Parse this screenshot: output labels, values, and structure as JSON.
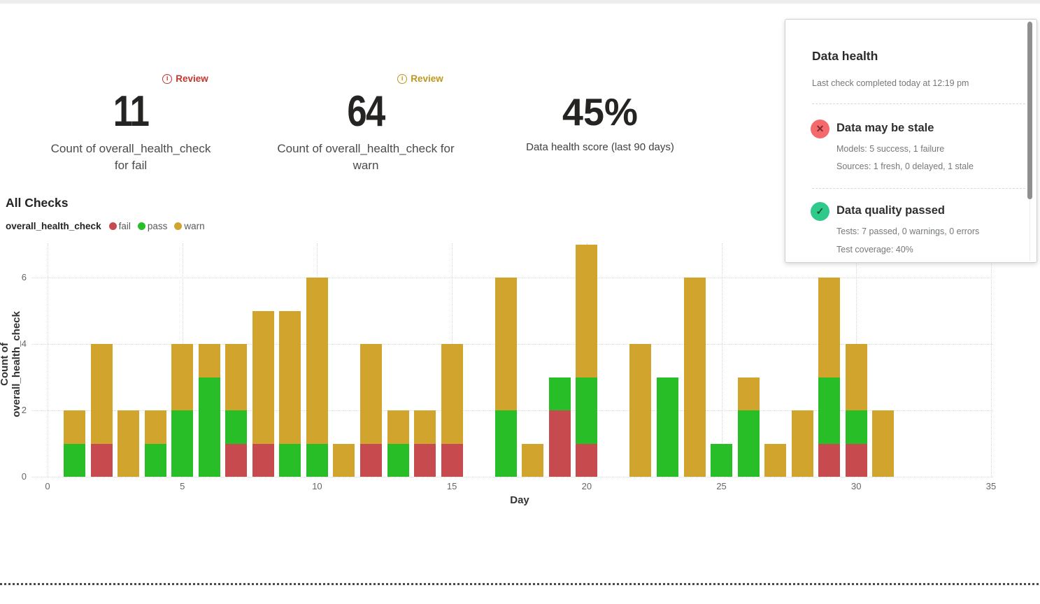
{
  "cards": [
    {
      "badge_label": "Review",
      "badge_icon_glyph": "i",
      "badge_color": "#C5352F",
      "value": "11",
      "label_line1": "Count of overall_health_check",
      "label_line2": "for fail"
    },
    {
      "badge_label": "Review",
      "badge_icon_glyph": "i",
      "badge_color": "#BD981F",
      "value": "64",
      "label_line1": "Count of overall_health_check for",
      "label_line2": "warn"
    },
    {
      "value": "45%",
      "label_line1": "Data health score (last 90 days)"
    }
  ],
  "all_checks": {
    "title": "All Checks",
    "legend_title": "overall_health_check",
    "legend": [
      {
        "label": "fail",
        "color": "#C74A4E"
      },
      {
        "label": "pass",
        "color": "#28BE28"
      },
      {
        "label": "warn",
        "color": "#D1A42D"
      }
    ]
  },
  "chart_data": {
    "type": "bar",
    "stacked": true,
    "title": "All Checks",
    "xlabel": "Day",
    "ylabel": "Count of overall_health_check",
    "xlim": [
      0,
      35
    ],
    "ylim": [
      0,
      7.1
    ],
    "xticks": [
      0,
      5,
      10,
      15,
      20,
      25,
      30,
      35
    ],
    "yticks": [
      0,
      2,
      4,
      6
    ],
    "grid": "dotted",
    "legend_position": "top-left",
    "categories": [
      1,
      2,
      3,
      4,
      5,
      6,
      7,
      8,
      9,
      10,
      11,
      12,
      13,
      14,
      15,
      16,
      17,
      18,
      19,
      20,
      21,
      22,
      23,
      24,
      25,
      26,
      27,
      28,
      29,
      30,
      31
    ],
    "series": [
      {
        "name": "fail",
        "color": "#C74A4E",
        "values": [
          0,
          1,
          0,
          0,
          0,
          0,
          1,
          1,
          0,
          0,
          0,
          1,
          0,
          1,
          1,
          0,
          0,
          0,
          2,
          1,
          0,
          0,
          0,
          0,
          0,
          0,
          0,
          0,
          1,
          1,
          0
        ]
      },
      {
        "name": "pass",
        "color": "#28BE28",
        "values": [
          1,
          0,
          0,
          1,
          2,
          3,
          1,
          0,
          1,
          1,
          0,
          0,
          1,
          0,
          0,
          0,
          2,
          0,
          1,
          2,
          0,
          0,
          3,
          0,
          1,
          2,
          0,
          0,
          2,
          1,
          0
        ]
      },
      {
        "name": "warn",
        "color": "#D1A42D",
        "values": [
          1,
          3,
          2,
          1,
          2,
          1,
          2,
          4,
          4,
          5,
          1,
          3,
          1,
          1,
          3,
          0,
          4,
          1,
          0,
          4,
          0,
          4,
          0,
          6,
          0,
          1,
          1,
          2,
          3,
          2,
          2
        ]
      }
    ]
  },
  "health_panel": {
    "title": "Data health",
    "subtitle": "Last check completed today at 12:19 pm",
    "items": [
      {
        "title": "Data may be stale",
        "glyph": "✕",
        "icon_color": "#F4696B",
        "glyph_color": "#7B2B2D",
        "line1": "Models: 5 success, 1 failure",
        "line2": "Sources: 1 fresh, 0 delayed, 1 stale"
      },
      {
        "title": "Data quality passed",
        "glyph": "✓",
        "icon_color": "#2EC98B",
        "glyph_color": "#10512F",
        "line1": "Tests: 7 passed, 0 warnings, 0 errors",
        "line2": "Test coverage: 40%"
      }
    ]
  }
}
